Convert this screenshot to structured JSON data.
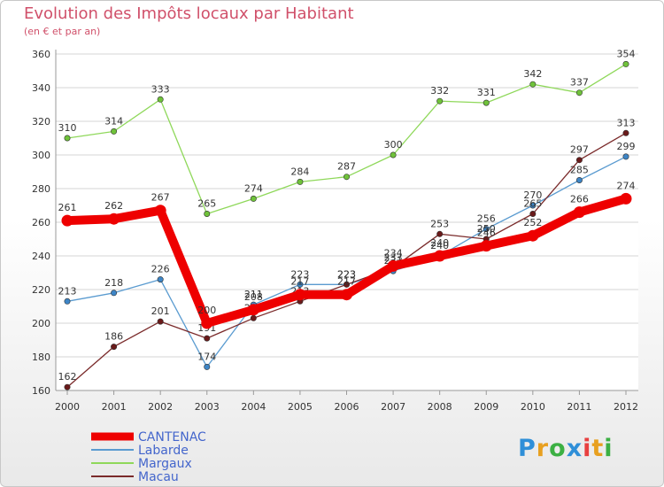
{
  "chart_data": {
    "type": "line",
    "title": "Evolution des Impôts locaux par Habitant",
    "subtitle": "(en € et par an)",
    "categories": [
      "2000",
      "2001",
      "2002",
      "2003",
      "2004",
      "2005",
      "2006",
      "2007",
      "2008",
      "2009",
      "2010",
      "2011",
      "2012"
    ],
    "ylim": [
      160,
      360
    ],
    "yticks": [
      160,
      180,
      200,
      220,
      240,
      260,
      280,
      300,
      320,
      340,
      360
    ],
    "grid": true,
    "legend_position": "bottom-left",
    "series": [
      {
        "name": "Margaux",
        "color": "#8fd85a",
        "marker": "#6fc23a",
        "values": [
          310,
          314,
          333,
          265,
          274,
          284,
          287,
          300,
          332,
          331,
          342,
          337,
          354
        ]
      },
      {
        "name": "Labarde",
        "color": "#5a9bd0",
        "marker": "#3d85c6",
        "values": [
          213,
          218,
          226,
          174,
          211,
          223,
          223,
          231,
          240,
          256,
          270,
          285,
          299
        ]
      },
      {
        "name": "Macau",
        "color": "#7a2a2a",
        "marker": "#6a1a1a",
        "values": [
          162,
          186,
          201,
          191,
          203,
          213,
          223,
          233,
          253,
          250,
          265,
          297,
          313
        ]
      },
      {
        "name": "CANTENAC",
        "color": "#ee0000",
        "marker": "#ee0000",
        "values": [
          261,
          262,
          267,
          200,
          208,
          217,
          217,
          234,
          240,
          246,
          252,
          266,
          274
        ]
      }
    ],
    "legend_order": [
      "CANTENAC",
      "Labarde",
      "Margaux",
      "Macau"
    ]
  },
  "brand": {
    "letters": [
      "P",
      "r",
      "o",
      "x",
      "i",
      "t",
      "i"
    ],
    "colors": [
      "#2f8fd8",
      "#e8a020",
      "#3cb043",
      "#2f8fd8",
      "#e84040",
      "#e8a020",
      "#3cb043"
    ]
  }
}
